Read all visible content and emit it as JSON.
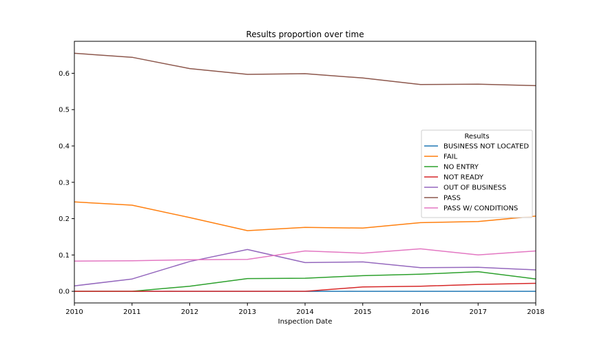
{
  "chart_data": {
    "type": "line",
    "title": "Results proportion over time",
    "xlabel": "Inspection Date",
    "ylabel": "",
    "x": [
      2010,
      2011,
      2012,
      2013,
      2014,
      2015,
      2016,
      2017,
      2018
    ],
    "xlim": [
      2010,
      2018
    ],
    "ylim": [
      -0.032,
      0.688
    ],
    "yticks": [
      0.0,
      0.1,
      0.2,
      0.3,
      0.4,
      0.5,
      0.6
    ],
    "ytick_labels": [
      "0.0",
      "0.1",
      "0.2",
      "0.3",
      "0.4",
      "0.5",
      "0.6"
    ],
    "xtick_labels": [
      "2010",
      "2011",
      "2012",
      "2013",
      "2014",
      "2015",
      "2016",
      "2017",
      "2018"
    ],
    "grid": false,
    "legend_title": "Results",
    "legend_position": "center-right",
    "series": [
      {
        "name": "BUSINESS NOT LOCATED",
        "color": "#1f77b4",
        "values": [
          0.0,
          0.0,
          0.0,
          0.0,
          0.0,
          0.0,
          0.0,
          0.0,
          0.0
        ]
      },
      {
        "name": "FAIL",
        "color": "#ff7f0e",
        "values": [
          0.246,
          0.237,
          0.203,
          0.167,
          0.176,
          0.174,
          0.189,
          0.192,
          0.207
        ]
      },
      {
        "name": "NO ENTRY",
        "color": "#2ca02c",
        "values": [
          0.0,
          0.0,
          0.014,
          0.035,
          0.036,
          0.043,
          0.047,
          0.054,
          0.034
        ]
      },
      {
        "name": "NOT READY",
        "color": "#d62728",
        "values": [
          0.0,
          0.0,
          0.0,
          0.0,
          0.0,
          0.012,
          0.014,
          0.019,
          0.022
        ]
      },
      {
        "name": "OUT OF BUSINESS",
        "color": "#9467bd",
        "values": [
          0.015,
          0.034,
          0.082,
          0.115,
          0.079,
          0.081,
          0.065,
          0.066,
          0.059
        ]
      },
      {
        "name": "PASS",
        "color": "#8c564b",
        "values": [
          0.655,
          0.644,
          0.613,
          0.597,
          0.599,
          0.587,
          0.569,
          0.57,
          0.566
        ]
      },
      {
        "name": "PASS W/ CONDITIONS",
        "color": "#e377c2",
        "values": [
          0.083,
          0.084,
          0.087,
          0.088,
          0.111,
          0.105,
          0.117,
          0.1,
          0.111
        ]
      }
    ]
  }
}
